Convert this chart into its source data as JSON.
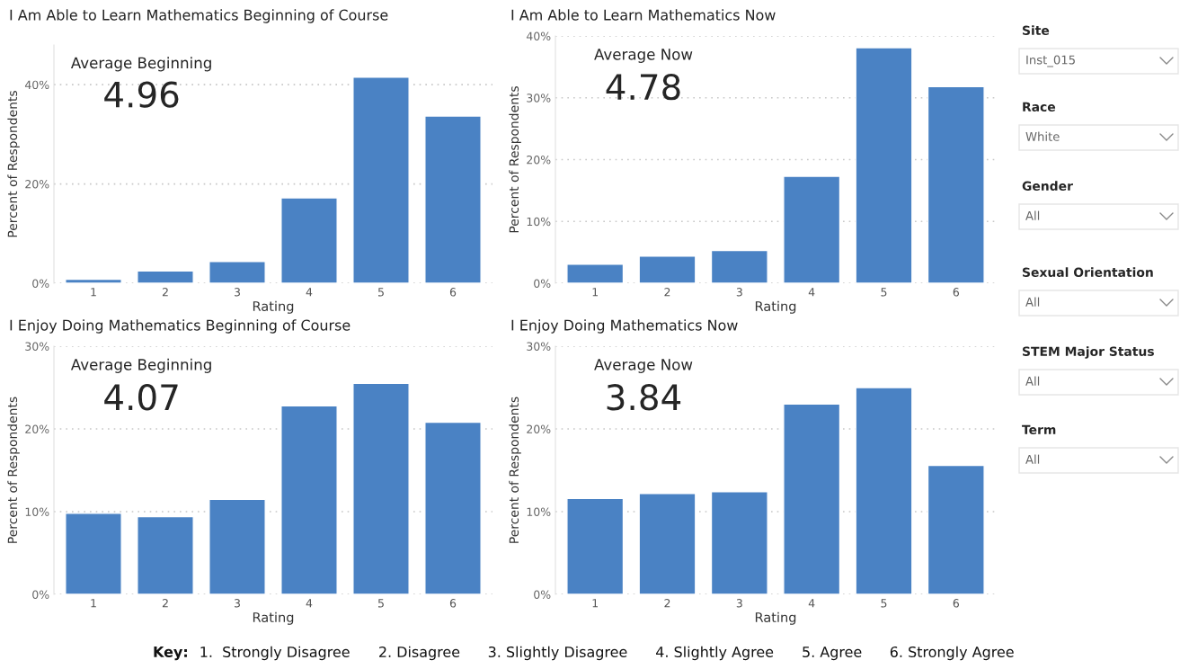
{
  "chart_data": [
    {
      "type": "bar",
      "title": "I Am Able to Learn Mathematics Beginning of Course",
      "xlabel": "Rating",
      "ylabel": "Percent of Respondents",
      "categories": [
        "1",
        "2",
        "3",
        "4",
        "5",
        "6"
      ],
      "values": [
        0.8,
        2.5,
        4.4,
        17.2,
        41.5,
        33.7
      ],
      "color": "#4a82c4",
      "ylim": [
        0,
        48
      ],
      "yticks": [
        {
          "value": 0,
          "label": "0%"
        },
        {
          "value": 20,
          "label": "20%"
        },
        {
          "value": 40,
          "label": "40%"
        }
      ],
      "grid": "y",
      "annotations": [
        "Average Beginning",
        "4.96"
      ]
    },
    {
      "type": "bar",
      "title": "I Am Able to Learn Mathematics Now",
      "xlabel": "Rating",
      "ylabel": "Percent of Respondents",
      "categories": [
        "1",
        "2",
        "3",
        "4",
        "5",
        "6"
      ],
      "values": [
        3.1,
        4.4,
        5.3,
        17.3,
        38.1,
        31.8
      ],
      "color": "#4a82c4",
      "ylim": [
        0,
        40
      ],
      "yticks": [
        {
          "value": 0,
          "label": "0%"
        },
        {
          "value": 10,
          "label": "10%"
        },
        {
          "value": 20,
          "label": "20%"
        },
        {
          "value": 30,
          "label": "30%"
        },
        {
          "value": 40,
          "label": "40%"
        }
      ],
      "grid": "y",
      "annotations": [
        "Average Now",
        "4.78"
      ]
    },
    {
      "type": "bar",
      "title": "I Enjoy Doing Mathematics Beginning of Course",
      "xlabel": "Rating",
      "ylabel": "Percent of Respondents",
      "categories": [
        "1",
        "2",
        "3",
        "4",
        "5",
        "6"
      ],
      "values": [
        9.8,
        9.4,
        11.5,
        22.8,
        25.5,
        20.8
      ],
      "color": "#4a82c4",
      "ylim": [
        0,
        30
      ],
      "yticks": [
        {
          "value": 0,
          "label": "0%"
        },
        {
          "value": 10,
          "label": "10%"
        },
        {
          "value": 20,
          "label": "20%"
        },
        {
          "value": 30,
          "label": "30%"
        }
      ],
      "grid": "y",
      "annotations": [
        "Average Beginning",
        "4.07"
      ]
    },
    {
      "type": "bar",
      "title": "I Enjoy Doing Mathematics Now",
      "xlabel": "Rating",
      "ylabel": "Percent of Respondents",
      "categories": [
        "1",
        "2",
        "3",
        "4",
        "5",
        "6"
      ],
      "values": [
        11.6,
        12.2,
        12.4,
        23.0,
        25.0,
        15.6
      ],
      "color": "#4a82c4",
      "ylim": [
        0,
        30
      ],
      "yticks": [
        {
          "value": 0,
          "label": "0%"
        },
        {
          "value": 10,
          "label": "10%"
        },
        {
          "value": 20,
          "label": "20%"
        },
        {
          "value": 30,
          "label": "30%"
        }
      ],
      "grid": "y",
      "annotations": [
        "Average Now",
        "3.84"
      ]
    },
    {
      "type": "other",
      "annotations": [
        "Site",
        "Inst_015",
        "Race",
        "White",
        "Gender",
        "All",
        "Sexual Orientation",
        "All",
        "STEM Major Status",
        "All",
        "Term",
        "All"
      ]
    },
    {
      "type": "other",
      "annotations": [
        "Key:",
        "1.  Strongly Disagree",
        "2. Disagree",
        "3. Slightly Disagree",
        "4. Slightly Agree",
        "5. Agree",
        "6. Strongly Agree"
      ]
    }
  ]
}
